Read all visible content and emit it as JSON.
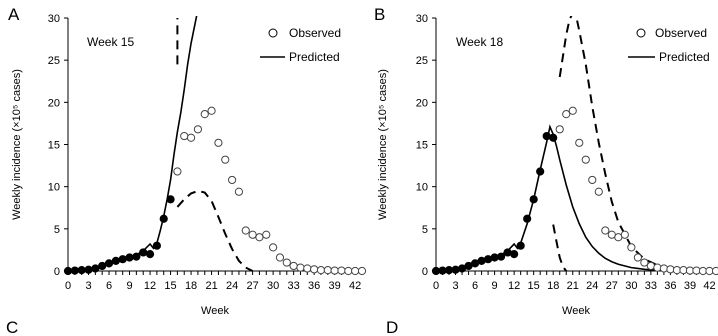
{
  "panels_partial": [
    {
      "letter": "C"
    },
    {
      "letter": "D"
    }
  ],
  "chart_data": [
    {
      "type": "line",
      "panel": "A",
      "annotation": "Week 15",
      "xlabel": "Week",
      "ylabel": "Weekly incidence (×10⁵ cases)",
      "xlim": [
        0,
        43
      ],
      "ylim": [
        0,
        30
      ],
      "xticks": [
        0,
        3,
        6,
        9,
        12,
        15,
        18,
        21,
        24,
        27,
        30,
        33,
        36,
        39,
        42
      ],
      "yticks": [
        0,
        5,
        10,
        15,
        20,
        25,
        30
      ],
      "legend": [
        "Observed",
        "Predicted"
      ],
      "observed_filled": {
        "x": [
          0,
          1,
          2,
          3,
          4,
          5,
          6,
          7,
          8,
          9,
          10,
          11,
          12,
          13,
          14,
          15
        ],
        "y": [
          0,
          0.05,
          0.1,
          0.15,
          0.3,
          0.6,
          0.9,
          1.2,
          1.4,
          1.6,
          1.7,
          2.2,
          2.0,
          3.0,
          6.2,
          8.5
        ]
      },
      "observed_open": {
        "x": [
          16,
          17,
          18,
          19,
          20,
          21,
          22,
          23,
          24,
          25,
          26,
          27,
          28,
          29,
          30,
          31,
          32,
          33,
          34,
          35,
          36,
          37,
          38,
          39,
          40,
          41,
          42,
          43
        ],
        "y": [
          11.8,
          16.0,
          15.8,
          16.8,
          18.6,
          19.0,
          15.2,
          13.2,
          10.8,
          9.4,
          4.8,
          4.3,
          4.0,
          4.3,
          2.8,
          1.6,
          1.0,
          0.6,
          0.4,
          0.3,
          0.2,
          0.1,
          0.1,
          0.05,
          0.05,
          0,
          0,
          0
        ]
      },
      "predicted": {
        "x": [
          0,
          2,
          4,
          6,
          8,
          10,
          11,
          12,
          12.5,
          13,
          13.5,
          14,
          14.5,
          15,
          15.5,
          16,
          16.5,
          17,
          17.5,
          18,
          18.5,
          19
        ],
        "y": [
          0,
          0.1,
          0.3,
          0.8,
          1.3,
          1.9,
          2.4,
          3.2,
          2.7,
          3.3,
          4.8,
          6.5,
          8.5,
          10.8,
          13.8,
          16.5,
          18.8,
          21.5,
          24.5,
          27.0,
          29.0,
          31.0
        ]
      },
      "upper_bound": {
        "x": [
          16,
          16
        ],
        "y": [
          24.5,
          30
        ]
      },
      "lower_bound": {
        "x": [
          16,
          17,
          18,
          19,
          20,
          21,
          22,
          23,
          24,
          25,
          26,
          27
        ],
        "y": [
          7.6,
          8.5,
          9.2,
          9.5,
          9.3,
          8.3,
          6.4,
          4.4,
          2.6,
          1.2,
          0.4,
          0
        ]
      }
    },
    {
      "type": "line",
      "panel": "B",
      "annotation": "Week 18",
      "xlabel": "Week",
      "ylabel": "Weekly incidence (×10⁵ cases)",
      "xlim": [
        0,
        43
      ],
      "ylim": [
        0,
        30
      ],
      "xticks": [
        0,
        3,
        6,
        9,
        12,
        15,
        18,
        21,
        24,
        27,
        30,
        33,
        36,
        39,
        42
      ],
      "yticks": [
        0,
        5,
        10,
        15,
        20,
        25,
        30
      ],
      "legend": [
        "Observed",
        "Predicted"
      ],
      "observed_filled": {
        "x": [
          0,
          1,
          2,
          3,
          4,
          5,
          6,
          7,
          8,
          9,
          10,
          11,
          12,
          13,
          14,
          15,
          16,
          17,
          18
        ],
        "y": [
          0,
          0.05,
          0.1,
          0.15,
          0.3,
          0.6,
          0.9,
          1.2,
          1.4,
          1.6,
          1.7,
          2.2,
          2.0,
          3.0,
          6.2,
          8.5,
          11.8,
          16.0,
          15.8
        ]
      },
      "observed_open": {
        "x": [
          19,
          20,
          21,
          22,
          23,
          24,
          25,
          26,
          27,
          28,
          29,
          30,
          31,
          32,
          33,
          34,
          35,
          36,
          37,
          38,
          39,
          40,
          41,
          42,
          43
        ],
        "y": [
          16.8,
          18.6,
          19.0,
          15.2,
          13.2,
          10.8,
          9.4,
          4.8,
          4.3,
          4.0,
          4.3,
          2.8,
          1.6,
          1.0,
          0.6,
          0.4,
          0.3,
          0.2,
          0.1,
          0.1,
          0.05,
          0.05,
          0,
          0,
          0
        ]
      },
      "predicted": {
        "x": [
          0,
          2,
          4,
          6,
          8,
          10,
          11,
          12,
          12.5,
          13,
          14,
          15,
          16,
          17,
          17.5,
          18,
          18.5,
          19,
          20,
          21,
          22,
          23,
          24,
          25,
          26,
          27,
          28,
          30,
          32,
          34,
          36,
          38,
          40,
          43
        ],
        "y": [
          0,
          0.1,
          0.3,
          0.8,
          1.3,
          1.9,
          2.4,
          3.2,
          2.7,
          3.3,
          5.6,
          8.5,
          12.0,
          15.3,
          17.1,
          16.2,
          14.8,
          13.2,
          10.2,
          7.6,
          5.6,
          4.0,
          2.9,
          2.1,
          1.5,
          1.1,
          0.8,
          0.4,
          0.2,
          0.1,
          0.05,
          0,
          0,
          0
        ]
      },
      "upper_bound": {
        "x": [
          19,
          19.5,
          20,
          20.5,
          21,
          21.5,
          22,
          23,
          24,
          25,
          26,
          27,
          28,
          30,
          32,
          34,
          36,
          38,
          40,
          43
        ],
        "y": [
          23.0,
          25.5,
          28.0,
          29.8,
          30.6,
          30.3,
          28.5,
          24.5,
          19.5,
          15.2,
          11.5,
          8.2,
          5.8,
          2.9,
          1.4,
          0.7,
          0.3,
          0.15,
          0.05,
          0
        ]
      },
      "lower_bound": {
        "x": [
          18,
          18.5,
          19,
          19.5,
          20
        ],
        "y": [
          5.5,
          3.5,
          1.6,
          0.5,
          0
        ]
      }
    }
  ]
}
